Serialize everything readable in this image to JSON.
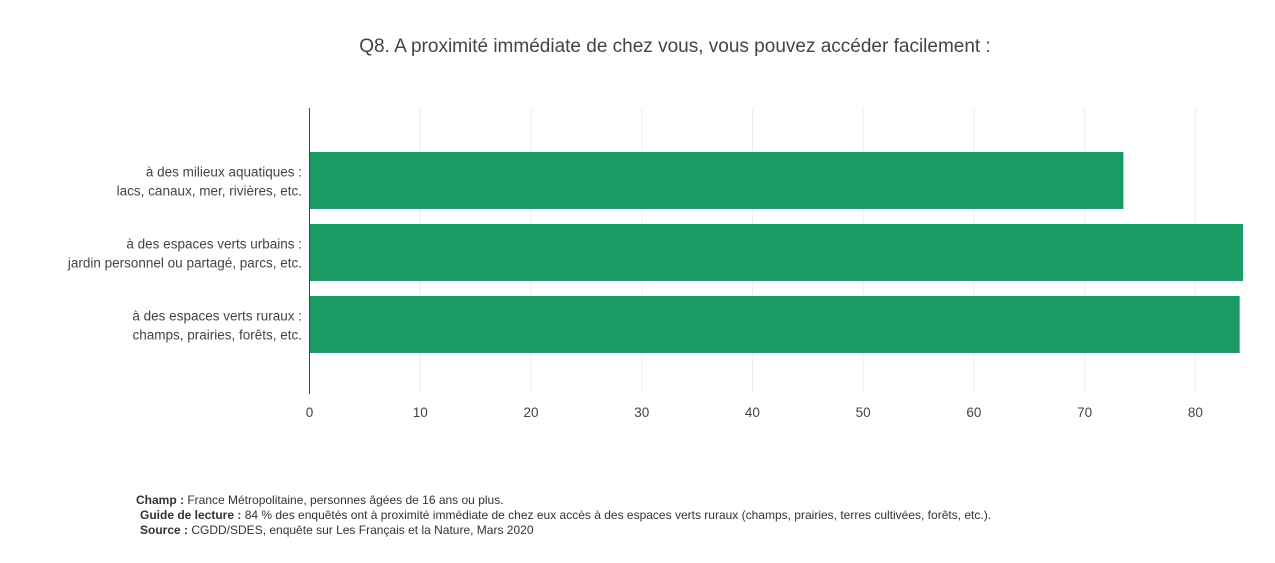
{
  "chart_data": {
    "type": "bar",
    "orientation": "horizontal",
    "title": "Q8. A proximité immédiate de chez vous, vous pouvez accéder facilement :",
    "categories": [
      [
        "à des milieux aquatiques :",
        "lacs, canaux, mer, rivières, etc."
      ],
      [
        "à des espaces verts urbains :",
        "jardin personnel ou partagé, parcs, etc."
      ],
      [
        "à des espaces verts ruraux :",
        "champs, prairies, forêts, etc."
      ]
    ],
    "values": [
      73.5,
      84.3,
      84.0
    ],
    "xlim": [
      0,
      84.3
    ],
    "xticks": [
      0,
      10,
      20,
      30,
      40,
      50,
      60,
      70,
      80
    ],
    "grid": true,
    "bar_color": "#1a9c64"
  },
  "footer": {
    "champ_label": "Champ :",
    "champ_text": " France Métropolitaine, personnes âgées de 16 ans ou plus.",
    "guide_label": "Guide de lecture :",
    "guide_text": " 84 % des enquêtés ont à proximité immédiate de chez eux accès à des espaces verts ruraux (champs, prairies, terres cultivées, forêts, etc.).",
    "source_label": "Source :",
    "source_text": " CGDD/SDES, enquête sur Les Français et la Nature, Mars 2020"
  }
}
